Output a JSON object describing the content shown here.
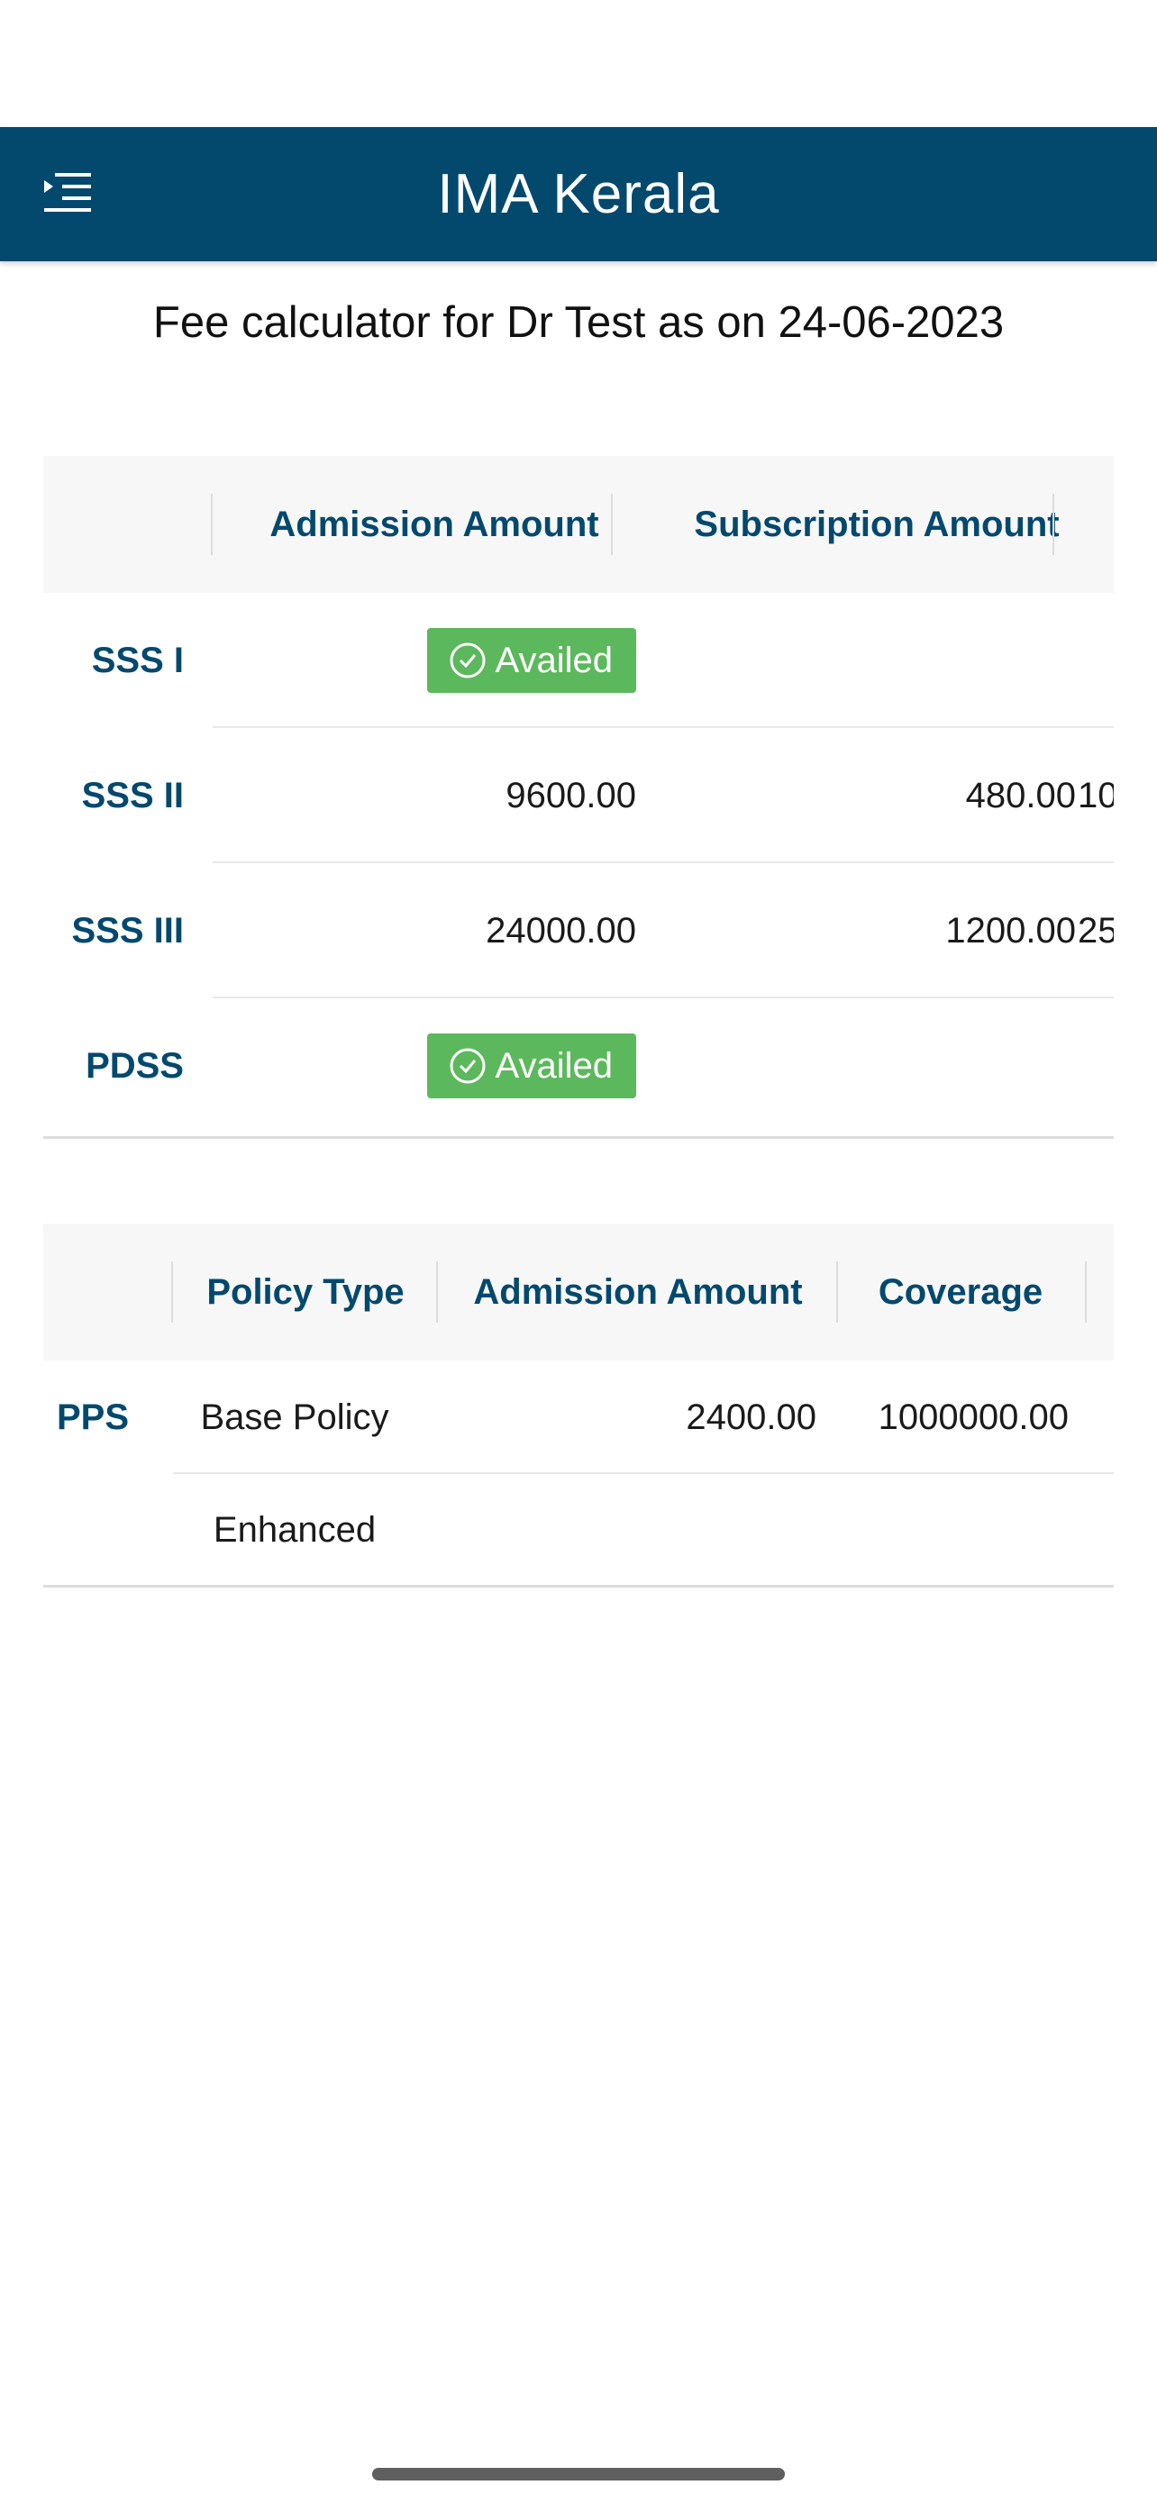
{
  "header": {
    "title": "IMA Kerala",
    "menu_icon": "menu-icon"
  },
  "page_title": "Fee calculator for Dr Test as on 24-06-2023",
  "sss_table": {
    "columns": [
      "",
      "Admission Amount",
      "Subscription Amount"
    ],
    "rows": [
      {
        "label": "SSS I",
        "admission": "Availed",
        "subscription": "",
        "overflow": ""
      },
      {
        "label": "SSS II",
        "admission": "9600.00",
        "subscription": "480.00",
        "overflow": "10"
      },
      {
        "label": "SSS III",
        "admission": "24000.00",
        "subscription": "1200.00",
        "overflow": "25"
      },
      {
        "label": "PDSS",
        "admission": "Availed",
        "subscription": "",
        "overflow": ""
      }
    ]
  },
  "pps_table": {
    "columns": [
      "",
      "Policy Type",
      "Admission Amount",
      "Coverage"
    ],
    "rows": [
      {
        "label": "PPS",
        "policy_type": "Base Policy",
        "admission": "2400.00",
        "coverage": "1000000.00"
      },
      {
        "label": "",
        "policy_type": "Enhanced",
        "admission": "",
        "coverage": ""
      }
    ]
  },
  "colors": {
    "primary": "#03496e",
    "availed_badge": "#5cb85c"
  }
}
